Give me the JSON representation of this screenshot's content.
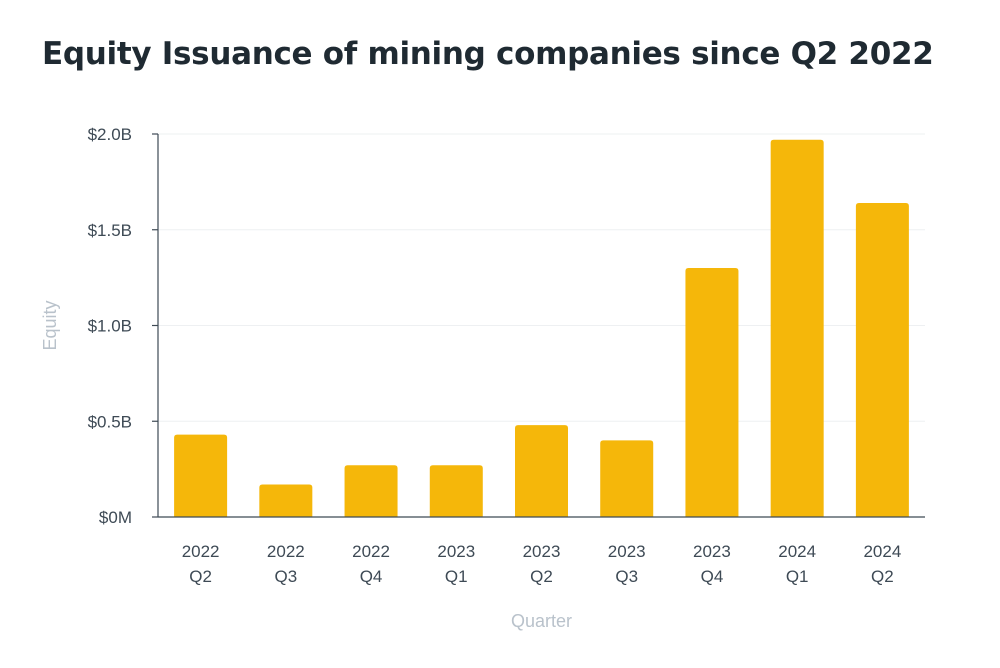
{
  "chart_data": {
    "type": "bar",
    "title": "Equity Issuance of mining companies since Q2 2022",
    "xlabel": "Quarter",
    "ylabel": "Equity",
    "categories": [
      [
        "2022",
        "Q2"
      ],
      [
        "2022",
        "Q3"
      ],
      [
        "2022",
        "Q4"
      ],
      [
        "2023",
        "Q1"
      ],
      [
        "2023",
        "Q2"
      ],
      [
        "2023",
        "Q3"
      ],
      [
        "2023",
        "Q4"
      ],
      [
        "2024",
        "Q1"
      ],
      [
        "2024",
        "Q2"
      ]
    ],
    "values": [
      0.43,
      0.17,
      0.27,
      0.27,
      0.48,
      0.4,
      1.3,
      1.97,
      1.64
    ],
    "value_unit": "billion USD",
    "ylim": [
      0,
      2.0
    ],
    "yticks": [
      {
        "value": 0,
        "label": "$0M"
      },
      {
        "value": 0.5,
        "label": "$0.5B"
      },
      {
        "value": 1.0,
        "label": "$1.0B"
      },
      {
        "value": 1.5,
        "label": "$1.5B"
      },
      {
        "value": 2.0,
        "label": "$2.0B"
      }
    ],
    "grid": true,
    "bar_color": "#f5b70a"
  }
}
